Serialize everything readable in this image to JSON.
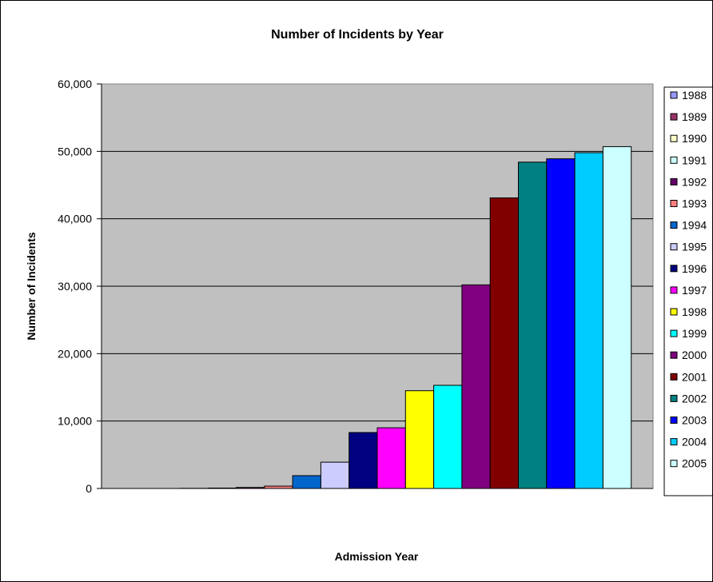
{
  "chart_data": {
    "type": "bar",
    "title": "Number of Incidents by Year",
    "xlabel": "Admission Year",
    "ylabel": "Number of Incidents",
    "ylim": [
      0,
      60000
    ],
    "yticks": [
      0,
      10000,
      20000,
      30000,
      40000,
      50000,
      60000
    ],
    "ytick_labels": [
      "0",
      "10,000",
      "20,000",
      "30,000",
      "40,000",
      "50,000",
      "60,000"
    ],
    "grid": true,
    "plot_background": "#c0c0c0",
    "legend_position": "right",
    "series": [
      {
        "name": "1988",
        "value": 0,
        "color": "#9999ff"
      },
      {
        "name": "1989",
        "value": 0,
        "color": "#993366"
      },
      {
        "name": "1990",
        "value": 20,
        "color": "#ffffcc"
      },
      {
        "name": "1991",
        "value": 60,
        "color": "#ccffff"
      },
      {
        "name": "1992",
        "value": 150,
        "color": "#660066"
      },
      {
        "name": "1993",
        "value": 350,
        "color": "#ff8080"
      },
      {
        "name": "1994",
        "value": 1900,
        "color": "#0066cc"
      },
      {
        "name": "1995",
        "value": 3900,
        "color": "#ccccff"
      },
      {
        "name": "1996",
        "value": 8300,
        "color": "#000080"
      },
      {
        "name": "1997",
        "value": 9000,
        "color": "#ff00ff"
      },
      {
        "name": "1998",
        "value": 14500,
        "color": "#ffff00"
      },
      {
        "name": "1999",
        "value": 15300,
        "color": "#00ffff"
      },
      {
        "name": "2000",
        "value": 30200,
        "color": "#800080"
      },
      {
        "name": "2001",
        "value": 43100,
        "color": "#800000"
      },
      {
        "name": "2002",
        "value": 48400,
        "color": "#008080"
      },
      {
        "name": "2003",
        "value": 48900,
        "color": "#0000ff"
      },
      {
        "name": "2004",
        "value": 49800,
        "color": "#00ccff"
      },
      {
        "name": "2005",
        "value": 50700,
        "color": "#ccffff"
      }
    ]
  }
}
